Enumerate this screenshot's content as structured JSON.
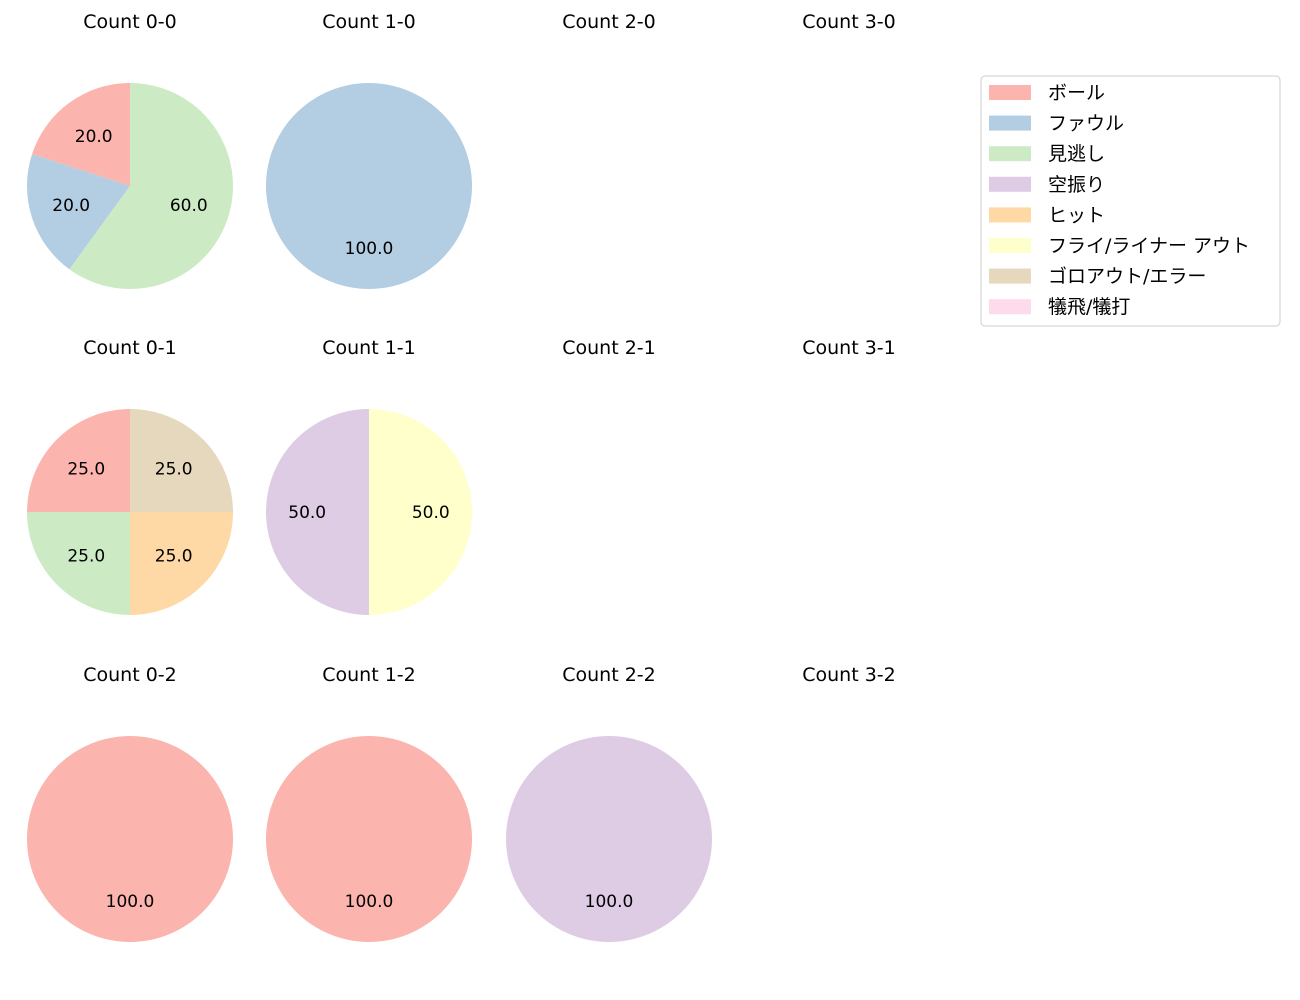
{
  "chart_data": {
    "type": "pie",
    "categories": [
      "ボール",
      "ファウル",
      "見逃し",
      "空振り",
      "ヒット",
      "フライ/ライナー アウト",
      "ゴロアウト/エラー",
      "犠飛/犠打"
    ],
    "colors": [
      "#fbb4ae",
      "#b3cde3",
      "#ccebc5",
      "#decbe4",
      "#fed9a6",
      "#ffffcc",
      "#e5d8bd",
      "#fddaec"
    ],
    "legend_position": "top-right",
    "charts": [
      {
        "title": "Count 0-0",
        "values": [
          20,
          20,
          60,
          0,
          0,
          0,
          0,
          0
        ],
        "labels": [
          "20.0",
          "20.0",
          "60.0"
        ]
      },
      {
        "title": "Count 1-0",
        "values": [
          0,
          100,
          0,
          0,
          0,
          0,
          0,
          0
        ],
        "labels": [
          "100.0"
        ]
      },
      {
        "title": "Count 2-0",
        "values": [],
        "labels": []
      },
      {
        "title": "Count 3-0",
        "values": [],
        "labels": []
      },
      {
        "title": "Count 0-1",
        "values": [
          25,
          0,
          25,
          0,
          25,
          0,
          25,
          0
        ],
        "labels": [
          "25.0",
          "25.0",
          "25.0",
          "25.0"
        ]
      },
      {
        "title": "Count 1-1",
        "values": [
          0,
          0,
          0,
          50,
          0,
          50,
          0,
          0
        ],
        "labels": [
          "50.0",
          "50.0"
        ]
      },
      {
        "title": "Count 2-1",
        "values": [],
        "labels": []
      },
      {
        "title": "Count 3-1",
        "values": [],
        "labels": []
      },
      {
        "title": "Count 0-2",
        "values": [
          100,
          0,
          0,
          0,
          0,
          0,
          0,
          0
        ],
        "labels": [
          "100.0"
        ]
      },
      {
        "title": "Count 1-2",
        "values": [
          100,
          0,
          0,
          0,
          0,
          0,
          0,
          0
        ],
        "labels": [
          "100.0"
        ]
      },
      {
        "title": "Count 2-2",
        "values": [
          0,
          0,
          0,
          100,
          0,
          0,
          0,
          0
        ],
        "labels": [
          "100.0"
        ]
      },
      {
        "title": "Count 3-2",
        "values": [],
        "labels": []
      }
    ]
  }
}
